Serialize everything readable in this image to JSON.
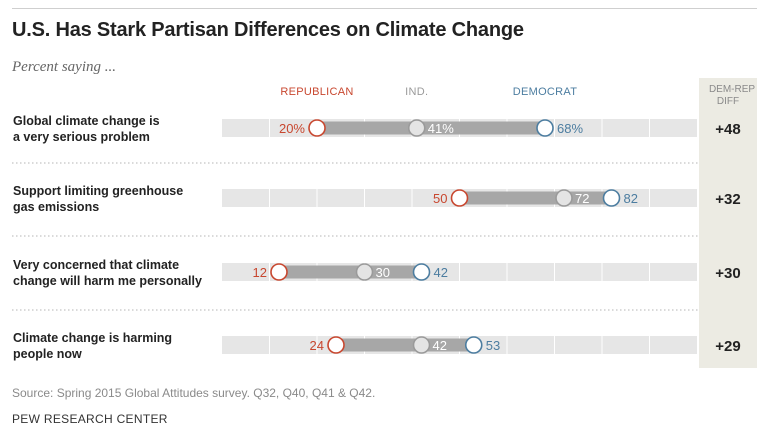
{
  "header": {
    "title": "U.S. Has Stark Partisan Differences on Climate Change",
    "subtitle": "Percent saying ..."
  },
  "footer": {
    "source": "Source: Spring 2015 Global Attitudes survey. Q32, Q40, Q41 & Q42.",
    "org": "PEW RESEARCH CENTER"
  },
  "colors": {
    "republican": "#c8472f",
    "independent": "#9a9a9a",
    "democrat": "#4c7da0",
    "track": "#e6e6e6",
    "range": "#a7a7a7",
    "diff_column": "#ecebe3"
  },
  "chart_data": {
    "type": "dot-range",
    "title": "U.S. Has Stark Partisan Differences on Climate Change",
    "subtitle": "Percent saying ...",
    "xlim": [
      0,
      100
    ],
    "grid": true,
    "legend": [
      "REPUBLICAN",
      "IND.",
      "DEMOCRAT"
    ],
    "diff_header": [
      "DEM-REP",
      "DIFF"
    ],
    "categories": [
      "Global climate change is a very serious problem",
      "Support limiting greenhouse gas emissions",
      "Very concerned that climate change will harm me personally",
      "Climate change is harming people now"
    ],
    "category_lines": [
      [
        "Global climate change is",
        "a very serious problem"
      ],
      [
        "Support limiting greenhouse",
        "gas emissions"
      ],
      [
        "Very concerned that climate",
        "change will harm me personally"
      ],
      [
        "Climate change is harming",
        "people now"
      ]
    ],
    "series": [
      {
        "name": "REPUBLICAN",
        "values": [
          20,
          50,
          12,
          24
        ],
        "labels": [
          "20%",
          "50",
          "12",
          "24"
        ]
      },
      {
        "name": "IND.",
        "values": [
          41,
          72,
          30,
          42
        ],
        "labels": [
          "41%",
          "72",
          "30",
          "42"
        ]
      },
      {
        "name": "DEMOCRAT",
        "values": [
          68,
          82,
          42,
          53
        ],
        "labels": [
          "68%",
          "82",
          "42",
          "53"
        ]
      }
    ],
    "diff": [
      "+48",
      "+32",
      "+30",
      "+29"
    ]
  }
}
